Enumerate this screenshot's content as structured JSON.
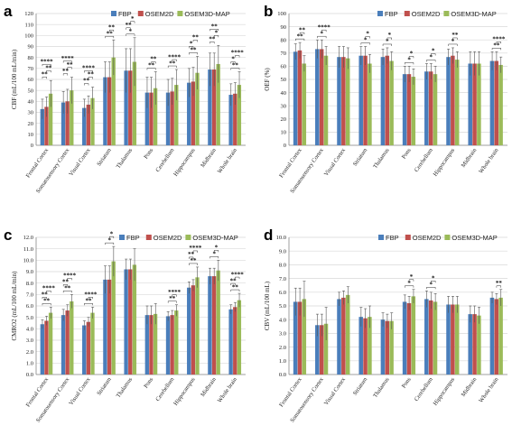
{
  "colors": {
    "FBP": "#4a7ebb",
    "OSEM2D": "#c0504d",
    "OSEM3D-MAP": "#9bbb59",
    "grid": "#d9d9d9",
    "axis": "#888888"
  },
  "legend": [
    "FBP",
    "OSEM2D",
    "OSEM3D-MAP"
  ],
  "chart_data": [
    {
      "panel": "a",
      "type": "bar",
      "ylabel": "CBF (mL/100 mL/min)",
      "ylim": [
        0,
        120
      ],
      "yticks": [
        "0",
        "10",
        "20",
        "30",
        "40",
        "50",
        "60",
        "70",
        "80",
        "90",
        "100",
        "110",
        "120"
      ],
      "categories": [
        "Frontal Cortex",
        "Somatosensory Cortex",
        "Visual Cortex",
        "Striatum",
        "Thalamus",
        "Pons",
        "Cerebellum",
        "Hippocampus",
        "Midbrain",
        "Whole brain"
      ],
      "series": [
        {
          "name": "FBP",
          "values": [
            33,
            39,
            34,
            62,
            68,
            48,
            48,
            57,
            69,
            46
          ],
          "errors": [
            9,
            10,
            8,
            14,
            20,
            14,
            12,
            13,
            15,
            10
          ]
        },
        {
          "name": "OSEM2D",
          "values": [
            35,
            40,
            37,
            62,
            68,
            48,
            49,
            58,
            69,
            47
          ],
          "errors": [
            9,
            11,
            8,
            14,
            20,
            14,
            12,
            13,
            15,
            10
          ]
        },
        {
          "name": "OSEM3D-MAP",
          "values": [
            47,
            50,
            43,
            80,
            76,
            52,
            55,
            66,
            74,
            55
          ],
          "errors": [
            12,
            12,
            10,
            16,
            22,
            15,
            14,
            15,
            17,
            12
          ]
        }
      ],
      "annotations": [
        {
          "cat": 0,
          "a": 0,
          "b": 1,
          "text": "**"
        },
        {
          "cat": 0,
          "a": 1,
          "b": 2,
          "text": "**"
        },
        {
          "cat": 0,
          "a": 0,
          "b": 2,
          "text": "****"
        },
        {
          "cat": 1,
          "a": 0,
          "b": 1,
          "text": "**"
        },
        {
          "cat": 1,
          "a": 1,
          "b": 2,
          "text": "**"
        },
        {
          "cat": 1,
          "a": 0,
          "b": 2,
          "text": "****"
        },
        {
          "cat": 2,
          "a": 0,
          "b": 1,
          "text": "**"
        },
        {
          "cat": 2,
          "a": 1,
          "b": 2,
          "text": "**"
        },
        {
          "cat": 2,
          "a": 0,
          "b": 2,
          "text": "****"
        },
        {
          "cat": 3,
          "a": 0,
          "b": 2,
          "text": "**"
        },
        {
          "cat": 3,
          "a": 1,
          "b": 2,
          "text": "**"
        },
        {
          "cat": 4,
          "a": 0,
          "b": 2,
          "text": "*"
        },
        {
          "cat": 4,
          "a": 0,
          "b": 1,
          "text": "**"
        },
        {
          "cat": 4,
          "a": 1,
          "b": 2,
          "text": "*"
        },
        {
          "cat": 5,
          "a": 0,
          "b": 2,
          "text": "**"
        },
        {
          "cat": 5,
          "a": 1,
          "b": 2,
          "text": "**"
        },
        {
          "cat": 6,
          "a": 0,
          "b": 2,
          "text": "**"
        },
        {
          "cat": 6,
          "a": 1,
          "b": 2,
          "text": "****"
        },
        {
          "cat": 7,
          "a": 0,
          "b": 2,
          "text": "**"
        },
        {
          "cat": 7,
          "a": 0,
          "b": 1,
          "text": "*"
        },
        {
          "cat": 7,
          "a": 1,
          "b": 2,
          "text": "**"
        },
        {
          "cat": 8,
          "a": 0,
          "b": 1,
          "text": "**"
        },
        {
          "cat": 8,
          "a": 1,
          "b": 2,
          "text": "*"
        },
        {
          "cat": 8,
          "a": 0,
          "b": 2,
          "text": "**"
        },
        {
          "cat": 9,
          "a": 0,
          "b": 2,
          "text": "**"
        },
        {
          "cat": 9,
          "a": 0,
          "b": 1,
          "text": "*"
        },
        {
          "cat": 9,
          "a": 1,
          "b": 2,
          "text": "****"
        }
      ]
    },
    {
      "panel": "b",
      "type": "bar",
      "ylabel": "OEF (%)",
      "ylim": [
        0,
        100
      ],
      "yticks": [
        "0",
        "10",
        "20",
        "30",
        "40",
        "50",
        "60",
        "70",
        "80",
        "90",
        "100"
      ],
      "categories": [
        "Frontal Cortex",
        "Somatosensory Cortex",
        "Visual Cortex",
        "Striatum",
        "Thalamus",
        "Pons",
        "Cerebellum",
        "Hippocampus",
        "Midbrain",
        "Whole brain"
      ],
      "series": [
        {
          "name": "FBP",
          "values": [
            71,
            73,
            67,
            68,
            67,
            54,
            56,
            67,
            62,
            64
          ],
          "errors": [
            6,
            7,
            8,
            7,
            6,
            6,
            6,
            6,
            9,
            7
          ]
        },
        {
          "name": "OSEM2D",
          "values": [
            72,
            73,
            67,
            68,
            68,
            54,
            56,
            68,
            62,
            64
          ],
          "errors": [
            6,
            7,
            8,
            7,
            6,
            6,
            6,
            6,
            9,
            7
          ]
        },
        {
          "name": "OSEM3D-MAP",
          "values": [
            62,
            68,
            66,
            62,
            64,
            52,
            54,
            65,
            62,
            61
          ],
          "errors": [
            6,
            7,
            8,
            7,
            7,
            6,
            6,
            6,
            9,
            6
          ]
        }
      ],
      "annotations": [
        {
          "cat": 0,
          "a": 0,
          "b": 2,
          "text": "**"
        },
        {
          "cat": 0,
          "a": 1,
          "b": 2,
          "text": "**"
        },
        {
          "cat": 1,
          "a": 0,
          "b": 2,
          "text": "*"
        },
        {
          "cat": 1,
          "a": 1,
          "b": 2,
          "text": "****"
        },
        {
          "cat": 3,
          "a": 0,
          "b": 2,
          "text": "*"
        },
        {
          "cat": 3,
          "a": 1,
          "b": 2,
          "text": "*"
        },
        {
          "cat": 4,
          "a": 0,
          "b": 2,
          "text": "*"
        },
        {
          "cat": 4,
          "a": 1,
          "b": 2,
          "text": "*"
        },
        {
          "cat": 5,
          "a": 0,
          "b": 2,
          "text": "*"
        },
        {
          "cat": 5,
          "a": 1,
          "b": 2,
          "text": "*"
        },
        {
          "cat": 6,
          "a": 0,
          "b": 2,
          "text": "*"
        },
        {
          "cat": 6,
          "a": 1,
          "b": 2,
          "text": "*"
        },
        {
          "cat": 7,
          "a": 0,
          "b": 2,
          "text": "*"
        },
        {
          "cat": 7,
          "a": 1,
          "b": 2,
          "text": "**"
        },
        {
          "cat": 9,
          "a": 0,
          "b": 2,
          "text": "**"
        },
        {
          "cat": 9,
          "a": 1,
          "b": 2,
          "text": "****"
        }
      ]
    },
    {
      "panel": "c",
      "type": "bar",
      "ylabel": "CMRO2 (mL/100 mL/min)",
      "ylim": [
        0,
        12
      ],
      "yticks": [
        "0.0",
        "1.0",
        "2.0",
        "3.0",
        "4.0",
        "5.0",
        "6.0",
        "7.0",
        "8.0",
        "9.0",
        "10.0",
        "11.0",
        "12.0"
      ],
      "categories": [
        "Frontal Cortex",
        "Somatosensory Cortex",
        "Visual Cortex",
        "Striatum",
        "Thalamus",
        "Pons",
        "Cerebellum",
        "Hippocampus",
        "Midbrain",
        "Whole brain"
      ],
      "series": [
        {
          "name": "FBP",
          "values": [
            4.4,
            5.2,
            4.3,
            8.3,
            9.2,
            5.2,
            5.1,
            7.6,
            8.6,
            5.7
          ],
          "errors": [
            0.4,
            0.5,
            0.4,
            1.2,
            0.9,
            0.8,
            0.4,
            0.5,
            0.7,
            0.4
          ]
        },
        {
          "name": "OSEM2D",
          "values": [
            4.7,
            5.6,
            4.6,
            8.3,
            9.2,
            5.2,
            5.2,
            7.8,
            8.6,
            5.9
          ],
          "errors": [
            0.4,
            0.5,
            0.4,
            1.2,
            0.9,
            0.8,
            0.4,
            0.5,
            0.7,
            0.4
          ]
        },
        {
          "name": "OSEM3D-MAP",
          "values": [
            5.4,
            6.4,
            5.4,
            9.9,
            9.6,
            5.3,
            5.6,
            8.5,
            9.1,
            6.5
          ],
          "errors": [
            0.5,
            0.6,
            0.5,
            1.3,
            1.4,
            0.9,
            0.5,
            0.9,
            0.9,
            0.6
          ]
        }
      ],
      "annotations": [
        {
          "cat": 0,
          "a": 0,
          "b": 2,
          "text": "**"
        },
        {
          "cat": 0,
          "a": 0,
          "b": 1,
          "text": "**"
        },
        {
          "cat": 0,
          "a": 1,
          "b": 2,
          "text": "****"
        },
        {
          "cat": 1,
          "a": 0,
          "b": 2,
          "text": "**"
        },
        {
          "cat": 1,
          "a": 0,
          "b": 1,
          "text": "**"
        },
        {
          "cat": 1,
          "a": 1,
          "b": 2,
          "text": "****"
        },
        {
          "cat": 2,
          "a": 0,
          "b": 2,
          "text": "**"
        },
        {
          "cat": 2,
          "a": 1,
          "b": 2,
          "text": "****"
        },
        {
          "cat": 3,
          "a": 0,
          "b": 2,
          "text": "*"
        },
        {
          "cat": 3,
          "a": 1,
          "b": 2,
          "text": "*"
        },
        {
          "cat": 6,
          "a": 0,
          "b": 2,
          "text": "**"
        },
        {
          "cat": 6,
          "a": 1,
          "b": 2,
          "text": "****"
        },
        {
          "cat": 7,
          "a": 0,
          "b": 2,
          "text": "**"
        },
        {
          "cat": 7,
          "a": 0,
          "b": 1,
          "text": "**"
        },
        {
          "cat": 7,
          "a": 1,
          "b": 2,
          "text": "****"
        },
        {
          "cat": 8,
          "a": 0,
          "b": 2,
          "text": "*"
        },
        {
          "cat": 8,
          "a": 1,
          "b": 2,
          "text": "*"
        },
        {
          "cat": 9,
          "a": 0,
          "b": 2,
          "text": "**"
        },
        {
          "cat": 9,
          "a": 0,
          "b": 1,
          "text": "**"
        },
        {
          "cat": 9,
          "a": 1,
          "b": 2,
          "text": "****"
        }
      ]
    },
    {
      "panel": "d",
      "type": "bar",
      "ylabel": "CBV (mL/100 mL)",
      "ylim": [
        0,
        10
      ],
      "yticks": [
        "0.0",
        "1.0",
        "2.0",
        "3.0",
        "4.0",
        "5.0",
        "6.0",
        "7.0",
        "8.0",
        "9.0",
        "10.0"
      ],
      "categories": [
        "Frontal Cortex",
        "Somatosensory Cortex",
        "Visual Cortex",
        "Striatum",
        "Thalamus",
        "Pons",
        "Cerebellum",
        "Hippocampus",
        "Midbrain",
        "Whole brain"
      ],
      "series": [
        {
          "name": "FBP",
          "values": [
            5.3,
            3.6,
            5.5,
            4.2,
            4.0,
            5.3,
            5.5,
            5.1,
            4.4,
            5.6
          ],
          "errors": [
            1.0,
            0.8,
            0.5,
            0.7,
            0.5,
            0.5,
            0.6,
            0.6,
            0.6,
            0.4
          ]
        },
        {
          "name": "OSEM2D",
          "values": [
            5.3,
            3.6,
            5.6,
            4.1,
            3.9,
            5.2,
            5.4,
            5.1,
            4.4,
            5.5
          ],
          "errors": [
            1.0,
            0.8,
            0.5,
            0.7,
            0.5,
            0.5,
            0.6,
            0.6,
            0.6,
            0.4
          ]
        },
        {
          "name": "OSEM3D-MAP",
          "values": [
            5.5,
            3.7,
            5.8,
            4.2,
            3.9,
            5.7,
            5.3,
            5.1,
            4.3,
            5.6
          ],
          "errors": [
            1.3,
            1.2,
            0.6,
            0.8,
            0.6,
            0.5,
            0.6,
            0.6,
            0.6,
            0.6
          ]
        }
      ],
      "annotations": [
        {
          "cat": 5,
          "a": 0,
          "b": 2,
          "text": "*"
        },
        {
          "cat": 5,
          "a": 1,
          "b": 2,
          "text": "*"
        },
        {
          "cat": 6,
          "a": 0,
          "b": 2,
          "text": "*"
        },
        {
          "cat": 6,
          "a": 1,
          "b": 2,
          "text": "*"
        },
        {
          "cat": 9,
          "a": 1,
          "b": 2,
          "text": "**"
        }
      ]
    }
  ]
}
